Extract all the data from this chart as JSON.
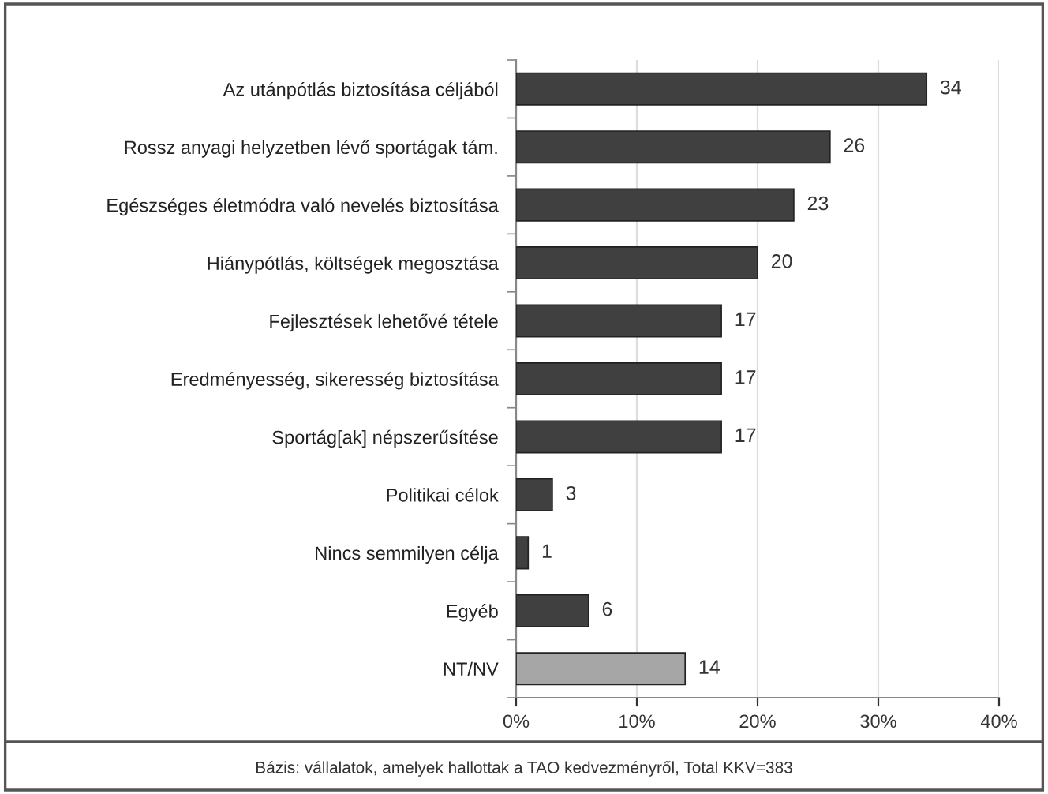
{
  "chart_data": {
    "type": "bar",
    "orientation": "horizontal",
    "categories": [
      "Az utánpótlás biztosítása céljából",
      "Rossz anyagi helyzetben lévő sportágak tám.",
      "Egészséges életmódra való nevelés biztosítása",
      "Hiánypótlás, költségek megosztása",
      "Fejlesztések lehetővé tétele",
      "Eredményesség, sikeresség biztosítása",
      "Sportág[ak] népszerűsítése",
      "Politikai célok",
      "Nincs semmilyen célja",
      "Egyéb",
      "NT/NV"
    ],
    "values": [
      34,
      26,
      23,
      20,
      17,
      17,
      17,
      3,
      1,
      6,
      14
    ],
    "colors": [
      "#404040",
      "#404040",
      "#404040",
      "#404040",
      "#404040",
      "#404040",
      "#404040",
      "#404040",
      "#404040",
      "#404040",
      "#a6a6a6"
    ],
    "xlim": [
      0,
      40
    ],
    "xticks": [
      {
        "value": 0,
        "label": "0%"
      },
      {
        "value": 10,
        "label": "10%"
      },
      {
        "value": 20,
        "label": "20%"
      },
      {
        "value": 30,
        "label": "30%"
      },
      {
        "value": 40,
        "label": "40%"
      }
    ],
    "grid": "x",
    "data_labels": true,
    "annotations": [
      "Bázis: vállalatok, amelyek hallottak a TAO kedvezményről, Total KKV=383"
    ]
  }
}
